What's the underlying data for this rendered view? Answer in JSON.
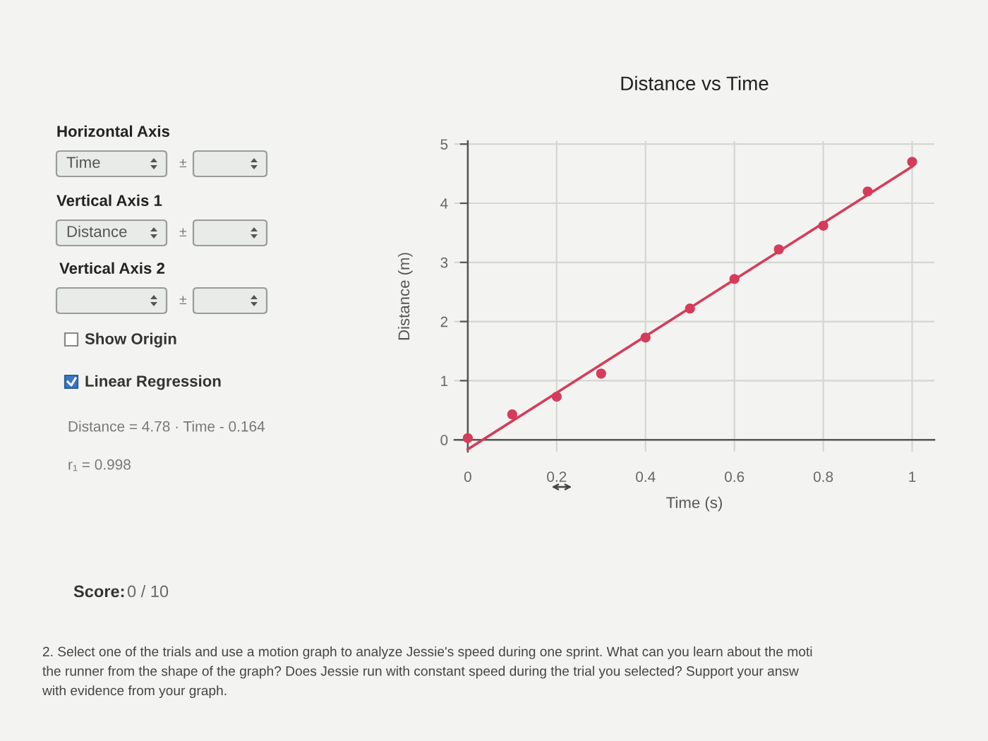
{
  "chart_data": {
    "type": "scatter",
    "title": "Distance vs Time",
    "xlabel": "Time (s)",
    "ylabel": "Distance (m)",
    "x": [
      0,
      0.1,
      0.2,
      0.3,
      0.4,
      0.5,
      0.6,
      0.7,
      0.8,
      0.9,
      1
    ],
    "series": [
      {
        "color": "#d63c5a",
        "marker": "circle",
        "values": [
          0.03,
          0.43,
          0.73,
          1.12,
          1.73,
          2.22,
          2.72,
          3.22,
          3.62,
          4.2,
          4.7
        ]
      },
      {
        "type": "line",
        "color": "#d63c5a",
        "marker": "none",
        "x": [
          0,
          1
        ],
        "values": [
          -0.16,
          4.62
        ]
      }
    ],
    "xlim": [
      -0.03,
      1.05
    ],
    "ylim": [
      -0.2,
      5.05
    ],
    "xticks": [
      0,
      0.2,
      0.4,
      0.6,
      0.8,
      1
    ],
    "yticks": [
      0,
      1,
      2,
      3,
      4,
      5
    ],
    "grid": true,
    "annotations": [
      "Horizontal Axis",
      "Time",
      "±",
      "Vertical Axis 1",
      "Distance",
      "±",
      "Vertical Axis 2",
      "±",
      "Show Origin",
      "Linear Regression",
      "Distance = 4.78 · Time - 0.164",
      "r₁ = 0.998",
      "Score:",
      "0 / 10",
      "2. Select one of the trials and use a motion graph to analyze Jessie's speed during one sprint. What can you learn about the moti\nthe runner from the shape of the graph? Does Jessie run with constant speed during the trial you selected? Support your answ\nwith evidence from your graph."
    ]
  }
}
